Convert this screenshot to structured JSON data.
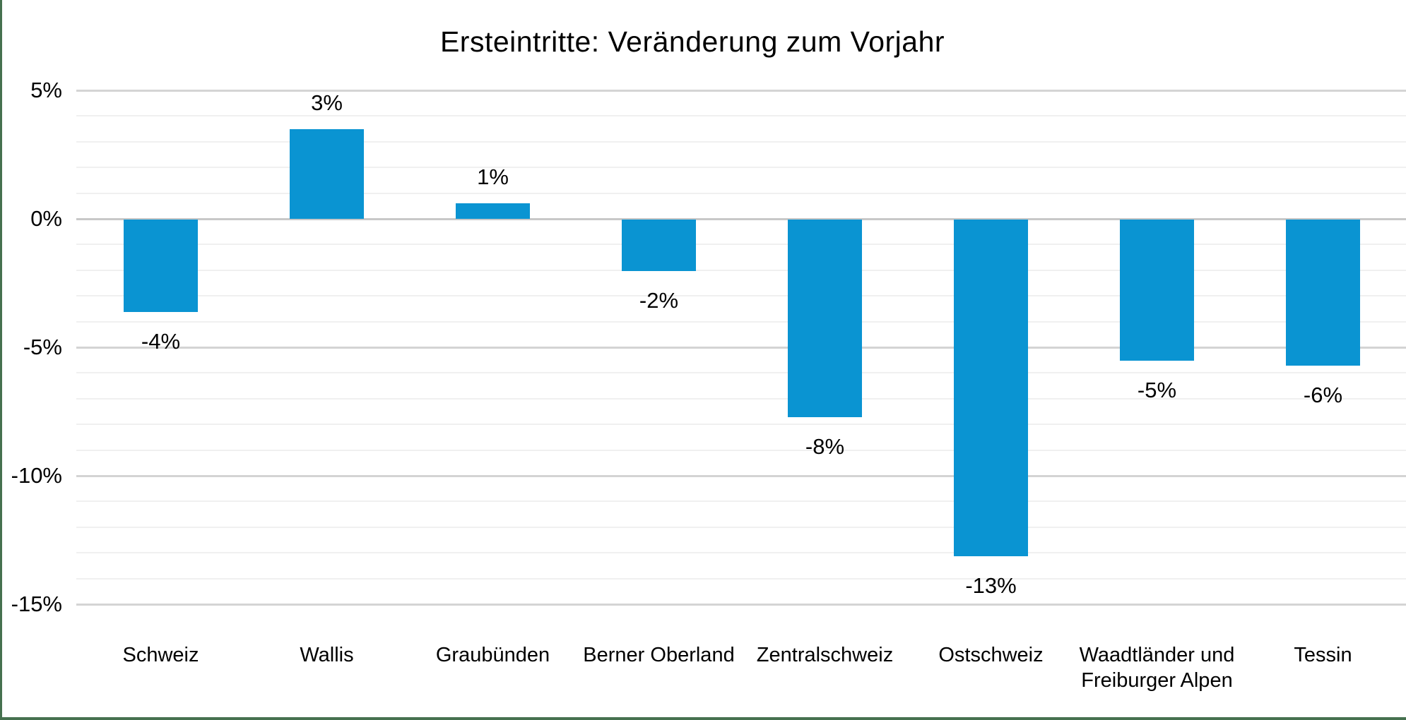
{
  "frame": {
    "border_color": "#46714f",
    "background_color": "#ffffff"
  },
  "chart_data": {
    "type": "bar",
    "title": "Ersteintritte: Veränderung zum Vorjahr",
    "categories": [
      "Schweiz",
      "Wallis",
      "Graubünden",
      "Berner Oberland",
      "Zentralschweiz",
      "Ostschweiz",
      "Waadtländer und Freiburger Alpen",
      "Tessin"
    ],
    "category_label_lines": [
      [
        "Schweiz"
      ],
      [
        "Wallis"
      ],
      [
        "Graubünden"
      ],
      [
        "Berner Oberland"
      ],
      [
        "Zentralschweiz"
      ],
      [
        "Ostschweiz"
      ],
      [
        "Waadtländer und",
        "Freiburger Alpen"
      ],
      [
        "Tessin"
      ]
    ],
    "values": [
      -3.6,
      3.5,
      0.6,
      -2.0,
      -7.7,
      -13.1,
      -5.5,
      -5.7
    ],
    "data_labels": [
      "-4%",
      "3%",
      "1%",
      "-2%",
      "-8%",
      "-13%",
      "-5%",
      "-6%"
    ],
    "xlabel": "",
    "ylabel": "",
    "ylim": [
      -15,
      5
    ],
    "y_major_ticks": [
      5,
      0,
      -5,
      -10,
      -15
    ],
    "y_tick_labels": [
      "5%",
      "0%",
      "-5%",
      "-10%",
      "-15%"
    ],
    "minor_grid_step_pct": 1,
    "grid": true,
    "legend": false,
    "bar_color": "#0a94d2",
    "gridline_major_color": "#d4d4d4",
    "gridline_minor_color": "#f0f0f0",
    "zero_line_color": "#c8c8c8",
    "text_color": "#000000"
  }
}
